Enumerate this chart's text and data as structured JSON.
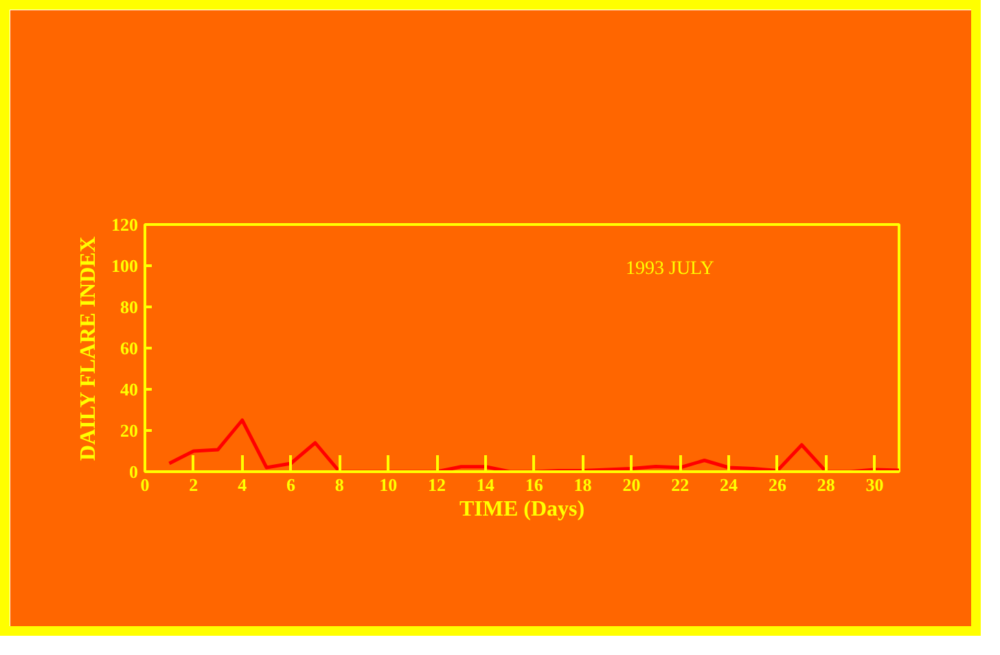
{
  "chart_data": {
    "type": "line",
    "xlabel": "TIME (Days)",
    "ylabel": "DAILY FLARE INDEX",
    "annotations": [
      "1993 JULY"
    ],
    "x": [
      1,
      2,
      3,
      4,
      5,
      6,
      7,
      8,
      9,
      10,
      11,
      12,
      13,
      14,
      15,
      16,
      17,
      18,
      19,
      20,
      21,
      22,
      23,
      24,
      25,
      26,
      27,
      28,
      29,
      30,
      31
    ],
    "series": [
      {
        "color": "#ff0000",
        "values": [
          4,
          10,
          10.7,
          25,
          2,
          4,
          14,
          0,
          0,
          0,
          0,
          0,
          2.4,
          2.4,
          0,
          0,
          0.5,
          0.5,
          1,
          1.5,
          2.5,
          2,
          5.5,
          2,
          1.5,
          0.5,
          13,
          0,
          0,
          1,
          0.7
        ]
      }
    ],
    "xlim": [
      0,
      31
    ],
    "ylim": [
      0,
      120
    ],
    "xticks": [
      0,
      2,
      4,
      6,
      8,
      10,
      12,
      14,
      16,
      18,
      20,
      22,
      24,
      26,
      28,
      30
    ],
    "yticks": [
      0,
      20,
      40,
      60,
      80,
      100,
      120
    ],
    "grid": false,
    "marker": "none",
    "line_style": "solid"
  }
}
